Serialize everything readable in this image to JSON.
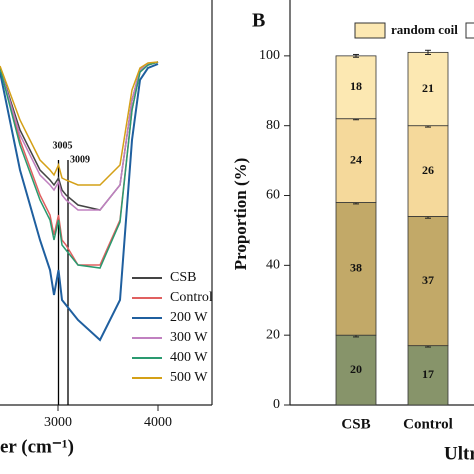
{
  "chart_data": [
    {
      "type": "line",
      "xlabel": "er (cm⁻¹)",
      "x": [
        2420,
        2620,
        2820,
        2920,
        2960,
        3005,
        3040,
        3080,
        3200,
        3420,
        3620,
        3740,
        3820,
        3900,
        4000
      ],
      "series": [
        {
          "name": "CSB",
          "color": "#444444",
          "values": [
            337,
            275,
            235,
            225,
            220,
            227,
            215,
            210,
            200,
            195,
            220,
            305,
            335,
            341,
            343
          ]
        },
        {
          "name": "Control",
          "color": "#e06060",
          "values": [
            337,
            265,
            210,
            190,
            170,
            190,
            165,
            160,
            140,
            140,
            185,
            295,
            333,
            340,
            343
          ]
        },
        {
          "name": "200 W",
          "color": "#1f5f9f",
          "values": [
            333,
            235,
            165,
            135,
            110,
            135,
            105,
            100,
            85,
            65,
            105,
            265,
            325,
            337,
            341
          ]
        },
        {
          "name": "300 W",
          "color": "#c080c0",
          "values": [
            337,
            270,
            230,
            220,
            215,
            223,
            210,
            205,
            195,
            195,
            220,
            305,
            335,
            341,
            343
          ]
        },
        {
          "name": "400 W",
          "color": "#2a9a70",
          "values": [
            337,
            260,
            205,
            185,
            165,
            185,
            160,
            155,
            140,
            137,
            183,
            295,
            333,
            340,
            343
          ]
        },
        {
          "name": "500 W",
          "color": "#d4a017",
          "values": [
            339,
            285,
            245,
            235,
            230,
            240,
            227,
            225,
            220,
            220,
            240,
            315,
            337,
            342,
            343
          ]
        }
      ],
      "annotations": [
        {
          "text": "3005",
          "x": 3005
        },
        {
          "text": "3009",
          "x": 3100
        }
      ],
      "xlim": [
        2420,
        4540
      ],
      "ylim": [
        0,
        405
      ],
      "xticks": [
        3000,
        4000
      ]
    },
    {
      "type": "stacked_bar",
      "panel_label": "B",
      "ylabel": "Proportion (%)",
      "xlabel": "Ultr",
      "categories": [
        "CSB",
        "Control"
      ],
      "series": [
        {
          "color": "#87946a",
          "label_color": "#ffffff",
          "values": [
            20,
            17
          ],
          "errors": [
            0.5,
            0.4
          ]
        },
        {
          "color": "#c2a968",
          "label_color": "#222222",
          "values": [
            38,
            37
          ],
          "errors": [
            0.4,
            0.5
          ]
        },
        {
          "color": "#f5d99b",
          "label_color": "#222222",
          "values": [
            24,
            26
          ],
          "errors": [
            0.3,
            0.4
          ]
        },
        {
          "name": "random coil",
          "color": "#fce8b2",
          "label_color": "#222222",
          "values": [
            18,
            21
          ],
          "errors": [
            0.4,
            0.6
          ]
        }
      ],
      "ylim": [
        0,
        116
      ],
      "yticks": [
        0,
        20,
        40,
        60,
        80,
        100
      ]
    }
  ]
}
